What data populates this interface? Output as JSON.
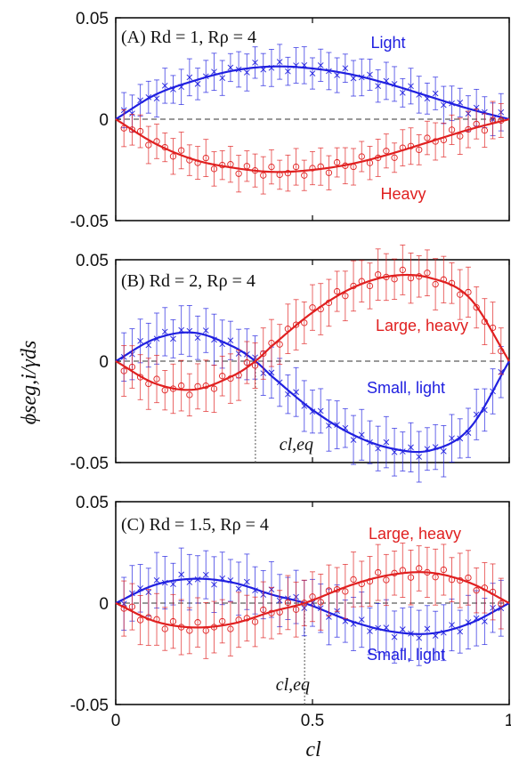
{
  "colors": {
    "light": "#2020e0",
    "heavy": "#e02020",
    "axis": "#000000",
    "zero": "#333333"
  },
  "axes": {
    "ylabel": "ϕseg,i/γ̇ds",
    "xlabel": "cl",
    "xticks": [
      "0",
      "0.5",
      "1"
    ],
    "yticks": [
      "0.05",
      "0",
      "-0.05"
    ]
  },
  "chart_data": [
    {
      "type": "line",
      "title": "(A) Rd = 1, Rρ = 4",
      "xlim": [
        0,
        1
      ],
      "ylim": [
        -0.05,
        0.05
      ],
      "grid": false,
      "zero_line": "dashed",
      "annotations": [
        {
          "text": "Light",
          "color": "light"
        },
        {
          "text": "Heavy",
          "color": "heavy"
        }
      ],
      "series": [
        {
          "name": "Light",
          "color": "light",
          "marker": "x",
          "x": [
            0.0,
            0.1,
            0.2,
            0.3,
            0.4,
            0.5,
            0.6,
            0.7,
            0.8,
            0.9,
            1.0
          ],
          "y": [
            0.0,
            0.012,
            0.019,
            0.024,
            0.026,
            0.025,
            0.022,
            0.017,
            0.011,
            0.005,
            0.0
          ],
          "error": 0.008
        },
        {
          "name": "Heavy",
          "color": "heavy",
          "marker": "o",
          "x": [
            0.0,
            0.1,
            0.2,
            0.3,
            0.4,
            0.5,
            0.6,
            0.7,
            0.8,
            0.9,
            1.0
          ],
          "y": [
            0.0,
            -0.012,
            -0.02,
            -0.024,
            -0.026,
            -0.025,
            -0.022,
            -0.017,
            -0.011,
            -0.005,
            0.0
          ],
          "error": 0.008
        }
      ]
    },
    {
      "type": "line",
      "title": "(B) Rd = 2, Rρ = 4",
      "xlim": [
        0,
        1
      ],
      "ylim": [
        -0.05,
        0.05
      ],
      "grid": false,
      "zero_line": "dashed",
      "crossing_label": "cl,eq",
      "crossing_x": 0.355,
      "annotations": [
        {
          "text": "Large, heavy",
          "color": "heavy"
        },
        {
          "text": "Small, light",
          "color": "light"
        }
      ],
      "series": [
        {
          "name": "Small, light",
          "color": "light",
          "marker": "x",
          "x": [
            0.0,
            0.1,
            0.2,
            0.3,
            0.355,
            0.4,
            0.5,
            0.6,
            0.7,
            0.8,
            0.9,
            1.0
          ],
          "y": [
            0.0,
            0.011,
            0.014,
            0.007,
            0.0,
            -0.008,
            -0.024,
            -0.036,
            -0.043,
            -0.044,
            -0.033,
            0.0
          ],
          "error": 0.011
        },
        {
          "name": "Large, heavy",
          "color": "heavy",
          "marker": "o",
          "x": [
            0.0,
            0.1,
            0.2,
            0.3,
            0.355,
            0.4,
            0.5,
            0.6,
            0.7,
            0.8,
            0.9,
            1.0
          ],
          "y": [
            0.0,
            -0.011,
            -0.014,
            -0.007,
            0.0,
            0.008,
            0.024,
            0.036,
            0.042,
            0.041,
            0.031,
            0.0
          ],
          "error": 0.011
        }
      ]
    },
    {
      "type": "line",
      "title": "(C) Rd = 1.5, Rρ = 4",
      "xlim": [
        0,
        1
      ],
      "ylim": [
        -0.05,
        0.05
      ],
      "grid": false,
      "zero_line": "dashed",
      "crossing_label": "cl,eq",
      "crossing_x": 0.48,
      "annotations": [
        {
          "text": "Large, heavy",
          "color": "heavy"
        },
        {
          "text": "Small, light",
          "color": "light"
        }
      ],
      "series": [
        {
          "name": "Small, light",
          "color": "light",
          "marker": "x",
          "x": [
            0.0,
            0.1,
            0.2,
            0.3,
            0.4,
            0.48,
            0.6,
            0.7,
            0.8,
            0.9,
            1.0
          ],
          "y": [
            0.0,
            0.009,
            0.012,
            0.01,
            0.004,
            0.0,
            -0.009,
            -0.014,
            -0.015,
            -0.01,
            0.0
          ],
          "error": 0.012
        },
        {
          "name": "Large, heavy",
          "color": "heavy",
          "marker": "o",
          "x": [
            0.0,
            0.1,
            0.2,
            0.3,
            0.4,
            0.48,
            0.6,
            0.7,
            0.8,
            0.9,
            1.0
          ],
          "y": [
            0.0,
            -0.009,
            -0.012,
            -0.01,
            -0.004,
            0.0,
            0.009,
            0.014,
            0.015,
            0.01,
            0.0
          ],
          "error": 0.012
        }
      ]
    }
  ]
}
